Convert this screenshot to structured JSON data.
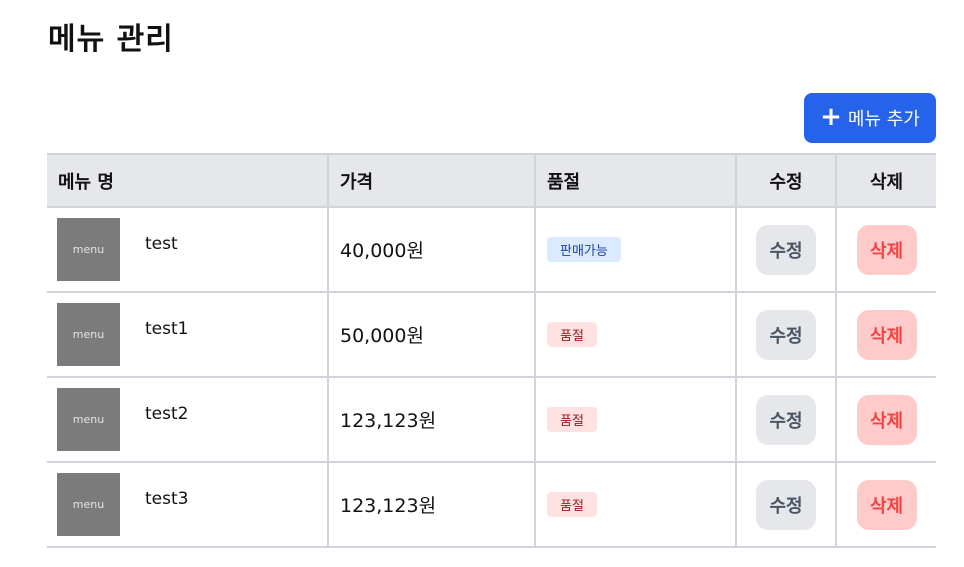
{
  "page": {
    "title": "메뉴 관리"
  },
  "toolbar": {
    "add_label": "메뉴 추가",
    "add_icon": "plus-icon"
  },
  "table": {
    "headers": {
      "name": "메뉴 명",
      "price": "가격",
      "soldout": "품절",
      "edit": "수정",
      "delete": "삭제"
    },
    "rows": [
      {
        "thumb": "menu",
        "name": "test",
        "price": "40,000원",
        "status": "판매가능",
        "status_type": "available",
        "edit_label": "수정",
        "delete_label": "삭제"
      },
      {
        "thumb": "menu",
        "name": "test1",
        "price": "50,000원",
        "status": "품절",
        "status_type": "soldout",
        "edit_label": "수정",
        "delete_label": "삭제"
      },
      {
        "thumb": "menu",
        "name": "test2",
        "price": "123,123원",
        "status": "품절",
        "status_type": "soldout",
        "edit_label": "수정",
        "delete_label": "삭제"
      },
      {
        "thumb": "menu",
        "name": "test3",
        "price": "123,123원",
        "status": "품절",
        "status_type": "soldout",
        "edit_label": "수정",
        "delete_label": "삭제"
      }
    ]
  },
  "colors": {
    "primary": "#2563eb",
    "header_bg": "#e5e7eb",
    "badge_available_bg": "#dbeafe",
    "badge_soldout_bg": "#fee2e2",
    "delete_bg": "#fecaca",
    "delete_text": "#ef4444"
  }
}
